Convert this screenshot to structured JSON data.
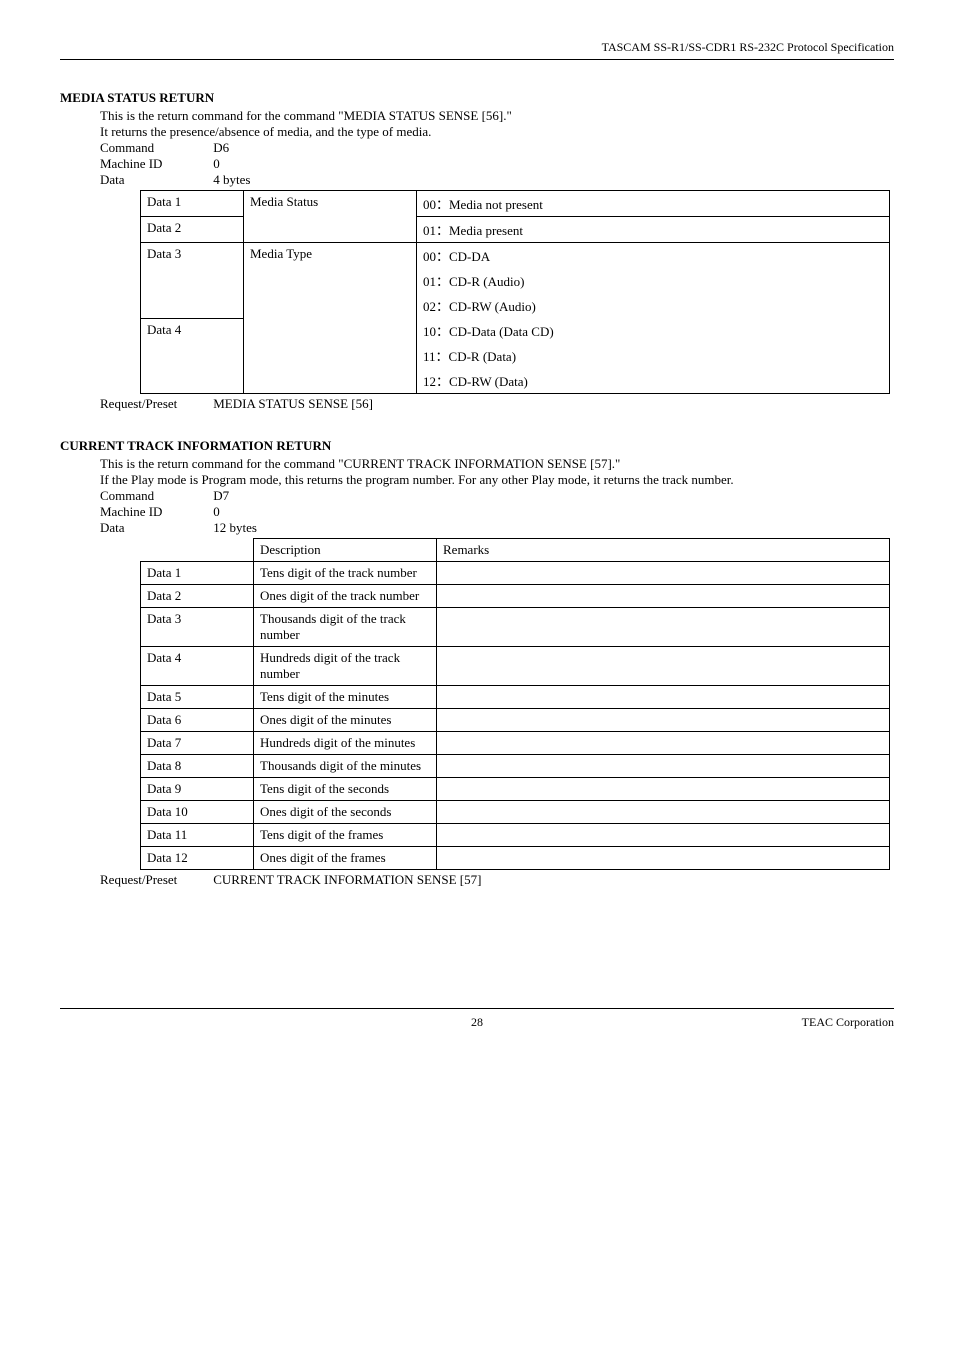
{
  "header": {
    "title": "TASCAM SS-R1/SS-CDR1 RS-232C Protocol Specification"
  },
  "sections": [
    {
      "title": "MEDIA STATUS RETURN",
      "lines": [
        "This is the return command for the command \"MEDIA STATUS SENSE [56].\"",
        "It returns the presence/absence of media, and the type of media."
      ],
      "fields": {
        "command_label": "Command",
        "command_value": "D6",
        "machine_id_label": "Machine ID",
        "machine_id_value": "0",
        "data_label": "Data",
        "data_value": "4 bytes"
      },
      "request_preset_label": "Request/Preset",
      "request_preset_value": "MEDIA STATUS SENSE [56]"
    },
    {
      "title": "CURRENT TRACK INFORMATION RETURN",
      "lines": [
        "This is the return command for the command \"CURRENT TRACK INFORMATION SENSE [57].\"",
        "If the Play mode is Program mode, this returns the program number. For any other Play mode, it returns the track number."
      ],
      "fields": {
        "command_label": "Command",
        "command_value": "D7",
        "machine_id_label": "Machine ID",
        "machine_id_value": "0",
        "data_label": "Data",
        "data_value": "12 bytes"
      },
      "request_preset_label": "Request/Preset",
      "request_preset_value": "CURRENT TRACK INFORMATION SENSE [57]"
    }
  ],
  "media_status_table": {
    "rows": {
      "data1_label": "Data 1",
      "data2_label": "Data 2",
      "data3_label": "Data 3",
      "data4_label": "Data 4",
      "media_status_label": "Media Status",
      "media_type_label": "Media Type",
      "v00": "00：Media not present",
      "v01": "01：Media present",
      "v00b": "00：CD-DA",
      "v01b": "01：CD-R (Audio)",
      "v02b": "02：CD-RW (Audio)",
      "v10b": "10：CD-Data (Data CD)",
      "v11b": "11：CD-R (Data)",
      "v12b": "12：CD-RW (Data)"
    }
  },
  "track_info_table": {
    "header": {
      "desc": "Description",
      "remarks": "Remarks"
    },
    "rows": [
      {
        "data": "Data 1",
        "desc": "Tens digit of the track number",
        "remarks": ""
      },
      {
        "data": "Data 2",
        "desc": "Ones digit of the track number",
        "remarks": ""
      },
      {
        "data": "Data 3",
        "desc": "Thousands digit of the track number",
        "remarks": ""
      },
      {
        "data": "Data 4",
        "desc": "Hundreds digit of the track number",
        "remarks": ""
      },
      {
        "data": "Data 5",
        "desc": "Tens digit of the minutes",
        "remarks": ""
      },
      {
        "data": "Data 6",
        "desc": "Ones digit of the minutes",
        "remarks": ""
      },
      {
        "data": "Data 7",
        "desc": "Hundreds digit of the minutes",
        "remarks": ""
      },
      {
        "data": "Data 8",
        "desc": "Thousands digit of the minutes",
        "remarks": ""
      },
      {
        "data": "Data 9",
        "desc": "Tens digit of the seconds",
        "remarks": ""
      },
      {
        "data": "Data 10",
        "desc": "Ones digit of the seconds",
        "remarks": ""
      },
      {
        "data": "Data 11",
        "desc": "Tens digit of the frames",
        "remarks": ""
      },
      {
        "data": "Data 12",
        "desc": "Ones digit of the frames",
        "remarks": ""
      }
    ]
  },
  "footer": {
    "page": "28",
    "company": "TEAC Corporation"
  }
}
